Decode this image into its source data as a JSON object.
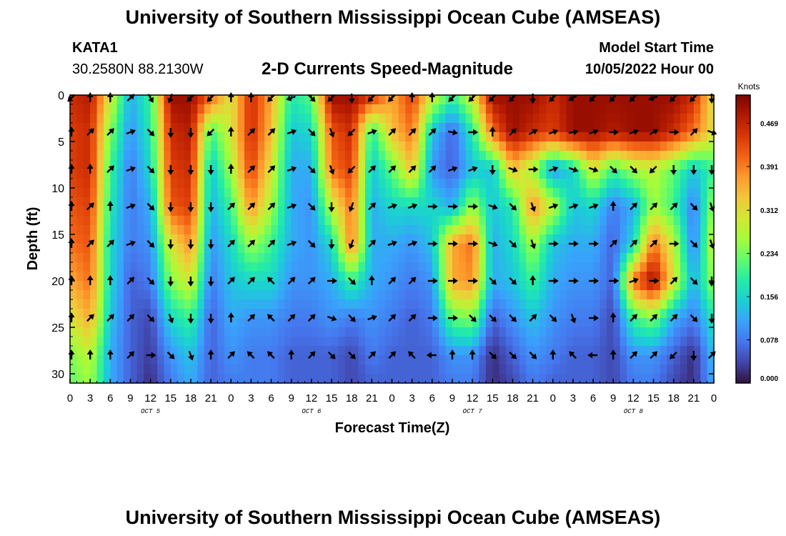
{
  "header": {
    "title": "University of Southern Mississippi Ocean Cube (AMSEAS)",
    "station": "KATA1",
    "coords": "30.2580N  88.2130W",
    "subtitle": "2-D Currents Speed-Magnitude",
    "model_start_label": "Model Start Time",
    "model_start_value": "10/05/2022 Hour 00"
  },
  "footer": {
    "title": "University of Southern Mississippi Ocean Cube (AMSEAS)"
  },
  "colors": {
    "colormap": [
      "#30123b",
      "#4145ab",
      "#4675ed",
      "#39a2fc",
      "#1bcfd4",
      "#24eca6",
      "#61fc6c",
      "#a4fc3b",
      "#d1e834",
      "#f3c63a",
      "#fe9b2d",
      "#f36315",
      "#d93806",
      "#b11901",
      "#7a0402"
    ],
    "arrow": "#000000"
  },
  "chart_data": {
    "type": "heatmap",
    "title": "2-D Currents Speed-Magnitude",
    "xlabel": "Forecast Time(Z)",
    "ylabel": "Depth (ft)",
    "colorbar_label": "Knots",
    "x_ticks": [
      "0",
      "3",
      "6",
      "9",
      "12",
      "15",
      "18",
      "21",
      "0",
      "3",
      "6",
      "9",
      "12",
      "15",
      "18",
      "21",
      "0",
      "3",
      "6",
      "9",
      "12",
      "15",
      "18",
      "21",
      "0",
      "3",
      "6",
      "9",
      "12",
      "15",
      "18",
      "21",
      "0"
    ],
    "day_labels": [
      {
        "label": "OCT  5",
        "hour": 12
      },
      {
        "label": "OCT  6",
        "hour": 36
      },
      {
        "label": "OCT  7",
        "hour": 60
      },
      {
        "label": "OCT  8",
        "hour": 84
      }
    ],
    "y_ticks": [
      0,
      5,
      10,
      15,
      20,
      25,
      30
    ],
    "xlim": [
      0,
      96
    ],
    "ylim": [
      0,
      31
    ],
    "colorbar_ticks": [
      "0.000",
      "0.078",
      "0.156",
      "0.234",
      "0.312",
      "0.391",
      "0.469"
    ],
    "colorbar_range": [
      0,
      0.52
    ],
    "time_hours": [
      0,
      3,
      6,
      9,
      12,
      15,
      18,
      21,
      24,
      27,
      30,
      33,
      36,
      39,
      42,
      45,
      48,
      51,
      54,
      57,
      60,
      63,
      66,
      69,
      72,
      75,
      78,
      81,
      84,
      87,
      90,
      93,
      96
    ],
    "depths_ft": [
      0,
      4,
      8,
      12,
      16,
      20,
      24,
      28,
      31
    ],
    "speed": [
      [
        0.46,
        0.48,
        0.3,
        0.12,
        0.2,
        0.5,
        0.5,
        0.42,
        0.3,
        0.46,
        0.36,
        0.18,
        0.22,
        0.5,
        0.5,
        0.46,
        0.36,
        0.44,
        0.3,
        0.2,
        0.3,
        0.5,
        0.5,
        0.5,
        0.46,
        0.5,
        0.5,
        0.5,
        0.5,
        0.5,
        0.5,
        0.46,
        0.3
      ],
      [
        0.44,
        0.46,
        0.24,
        0.1,
        0.18,
        0.46,
        0.48,
        0.2,
        0.3,
        0.46,
        0.34,
        0.14,
        0.16,
        0.42,
        0.46,
        0.18,
        0.34,
        0.4,
        0.14,
        0.06,
        0.18,
        0.4,
        0.5,
        0.46,
        0.44,
        0.5,
        0.5,
        0.48,
        0.5,
        0.5,
        0.46,
        0.4,
        0.3
      ],
      [
        0.44,
        0.46,
        0.2,
        0.08,
        0.16,
        0.44,
        0.46,
        0.14,
        0.26,
        0.44,
        0.3,
        0.12,
        0.12,
        0.4,
        0.44,
        0.14,
        0.22,
        0.34,
        0.1,
        0.06,
        0.14,
        0.14,
        0.34,
        0.26,
        0.1,
        0.16,
        0.3,
        0.2,
        0.26,
        0.28,
        0.22,
        0.14,
        0.2
      ],
      [
        0.42,
        0.44,
        0.18,
        0.08,
        0.12,
        0.42,
        0.44,
        0.12,
        0.2,
        0.38,
        0.26,
        0.12,
        0.1,
        0.28,
        0.4,
        0.12,
        0.16,
        0.16,
        0.16,
        0.12,
        0.26,
        0.14,
        0.18,
        0.38,
        0.28,
        0.14,
        0.16,
        0.08,
        0.12,
        0.26,
        0.2,
        0.08,
        0.26
      ],
      [
        0.4,
        0.42,
        0.16,
        0.08,
        0.1,
        0.3,
        0.38,
        0.1,
        0.16,
        0.26,
        0.2,
        0.12,
        0.1,
        0.16,
        0.4,
        0.12,
        0.12,
        0.1,
        0.14,
        0.36,
        0.4,
        0.12,
        0.16,
        0.26,
        0.14,
        0.12,
        0.12,
        0.06,
        0.16,
        0.4,
        0.28,
        0.08,
        0.3
      ],
      [
        0.36,
        0.4,
        0.16,
        0.06,
        0.08,
        0.24,
        0.3,
        0.08,
        0.14,
        0.16,
        0.16,
        0.1,
        0.1,
        0.12,
        0.2,
        0.12,
        0.1,
        0.08,
        0.1,
        0.36,
        0.38,
        0.12,
        0.14,
        0.2,
        0.12,
        0.1,
        0.1,
        0.06,
        0.4,
        0.5,
        0.3,
        0.12,
        0.26
      ],
      [
        0.3,
        0.36,
        0.14,
        0.06,
        0.04,
        0.16,
        0.2,
        0.06,
        0.12,
        0.1,
        0.1,
        0.08,
        0.08,
        0.1,
        0.08,
        0.1,
        0.08,
        0.06,
        0.08,
        0.22,
        0.24,
        0.06,
        0.1,
        0.14,
        0.1,
        0.08,
        0.08,
        0.04,
        0.2,
        0.24,
        0.12,
        0.08,
        0.18
      ],
      [
        0.24,
        0.28,
        0.12,
        0.06,
        0.03,
        0.1,
        0.14,
        0.06,
        0.1,
        0.08,
        0.08,
        0.06,
        0.06,
        0.06,
        0.04,
        0.08,
        0.06,
        0.06,
        0.06,
        0.1,
        0.1,
        0.02,
        0.06,
        0.1,
        0.08,
        0.06,
        0.06,
        0.04,
        0.1,
        0.1,
        0.06,
        0.02,
        0.14
      ],
      [
        0.22,
        0.26,
        0.12,
        0.06,
        0.02,
        0.08,
        0.12,
        0.06,
        0.08,
        0.08,
        0.08,
        0.06,
        0.06,
        0.06,
        0.04,
        0.06,
        0.06,
        0.06,
        0.06,
        0.08,
        0.08,
        0.02,
        0.04,
        0.08,
        0.06,
        0.06,
        0.06,
        0.04,
        0.08,
        0.08,
        0.04,
        0.02,
        0.12
      ]
    ],
    "arrow_depths_ft": [
      0,
      4,
      8,
      12,
      16,
      20,
      24,
      28
    ],
    "direction_deg": [
      [
        225,
        0,
        0,
        45,
        150,
        200,
        225,
        225,
        0,
        0,
        225,
        250,
        135,
        225,
        180,
        225,
        225,
        0,
        0,
        225,
        225,
        225,
        225,
        180,
        225,
        240,
        225,
        225,
        225,
        250,
        225,
        225,
        180
      ],
      [
        0,
        45,
        45,
        70,
        135,
        180,
        180,
        225,
        0,
        45,
        45,
        70,
        135,
        160,
        225,
        70,
        45,
        45,
        45,
        100,
        90,
        0,
        45,
        60,
        70,
        80,
        70,
        90,
        70,
        60,
        90,
        45,
        110
      ],
      [
        0,
        0,
        45,
        70,
        135,
        180,
        180,
        180,
        0,
        45,
        45,
        70,
        135,
        160,
        225,
        45,
        45,
        45,
        45,
        70,
        70,
        180,
        110,
        90,
        70,
        110,
        110,
        135,
        135,
        225,
        180,
        180,
        180
      ],
      [
        0,
        45,
        0,
        70,
        135,
        180,
        180,
        180,
        45,
        45,
        45,
        70,
        135,
        180,
        200,
        45,
        70,
        70,
        90,
        90,
        90,
        110,
        135,
        160,
        70,
        70,
        70,
        0,
        45,
        45,
        45,
        135,
        160
      ],
      [
        0,
        45,
        45,
        70,
        135,
        180,
        180,
        180,
        45,
        45,
        45,
        70,
        135,
        180,
        200,
        45,
        70,
        70,
        90,
        90,
        90,
        110,
        135,
        160,
        90,
        90,
        90,
        45,
        45,
        45,
        90,
        135,
        160
      ],
      [
        0,
        0,
        0,
        45,
        135,
        180,
        180,
        180,
        45,
        45,
        315,
        45,
        45,
        90,
        135,
        0,
        45,
        45,
        90,
        90,
        90,
        135,
        135,
        0,
        90,
        90,
        90,
        90,
        70,
        90,
        45,
        135,
        180
      ],
      [
        0,
        45,
        45,
        45,
        135,
        160,
        180,
        180,
        0,
        45,
        315,
        45,
        45,
        110,
        135,
        70,
        45,
        45,
        90,
        90,
        135,
        135,
        135,
        45,
        135,
        160,
        90,
        0,
        45,
        45,
        45,
        135,
        180
      ],
      [
        0,
        0,
        0,
        45,
        90,
        135,
        160,
        0,
        45,
        315,
        315,
        0,
        45,
        135,
        135,
        45,
        45,
        315,
        270,
        0,
        0,
        135,
        135,
        135,
        0,
        315,
        270,
        0,
        45,
        45,
        225,
        180,
        45
      ]
    ]
  }
}
